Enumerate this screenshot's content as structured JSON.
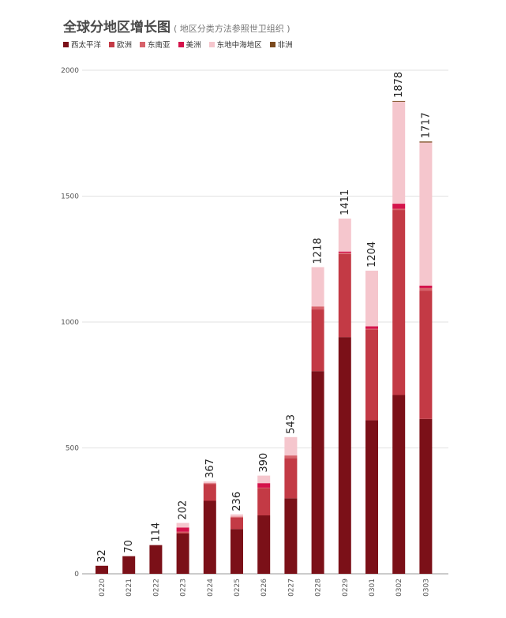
{
  "chart_data": {
    "type": "bar",
    "stacked": true,
    "title": "全球分地区增长图",
    "subtitle": "( 地区分类方法参照世卫组织 )",
    "categories": [
      "0220",
      "0221",
      "0222",
      "0223",
      "0224",
      "0225",
      "0226",
      "0227",
      "0228",
      "0229",
      "0301",
      "0302",
      "0303"
    ],
    "series": [
      {
        "name": "西太平洋",
        "color": "#7b1018",
        "values": [
          32,
          70,
          114,
          160,
          290,
          178,
          232,
          300,
          805,
          940,
          610,
          710,
          615
        ]
      },
      {
        "name": "欧洲",
        "color": "#c33a45",
        "values": [
          0,
          0,
          0,
          5,
          67,
          45,
          108,
          160,
          245,
          330,
          360,
          735,
          510
        ]
      },
      {
        "name": "东南亚",
        "color": "#d7626a",
        "values": [
          0,
          0,
          0,
          2,
          3,
          4,
          2,
          10,
          12,
          5,
          3,
          5,
          10
        ]
      },
      {
        "name": "美洲",
        "color": "#d4134a",
        "values": [
          0,
          0,
          0,
          17,
          0,
          0,
          18,
          0,
          0,
          5,
          10,
          20,
          10
        ]
      },
      {
        "name": "东地中海地区",
        "color": "#f5c6cd",
        "values": [
          0,
          0,
          0,
          18,
          7,
          9,
          30,
          73,
          156,
          131,
          221,
          405,
          568
        ]
      },
      {
        "name": "非洲",
        "color": "#7a4a1e",
        "values": [
          0,
          0,
          0,
          0,
          0,
          0,
          0,
          0,
          0,
          0,
          0,
          3,
          4
        ]
      }
    ],
    "totals": [
      32,
      70,
      114,
      202,
      367,
      236,
      390,
      543,
      1218,
      1411,
      1204,
      1878,
      1717
    ],
    "ylim": [
      0,
      2000
    ],
    "yticks": [
      0,
      500,
      1000,
      1500,
      2000
    ],
    "xlabel": "",
    "ylabel": "",
    "grid": true
  }
}
